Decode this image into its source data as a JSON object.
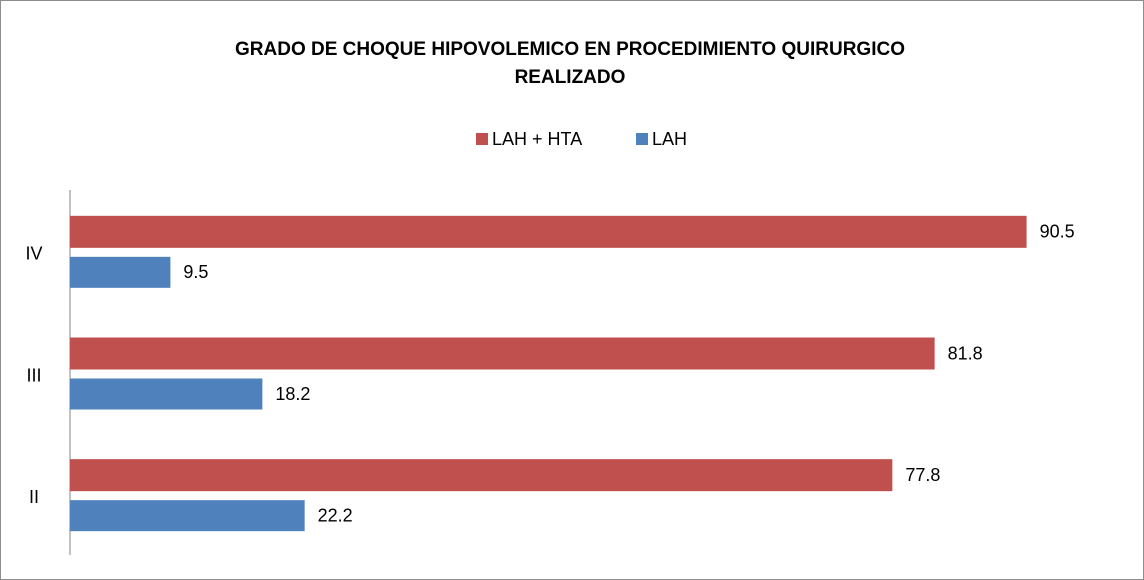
{
  "chart_data": {
    "type": "bar",
    "orientation": "horizontal",
    "title": "GRADO DE CHOQUE HIPOVOLEMICO EN PROCEDIMIENTO QUIRURGICO REALIZADO",
    "categories": [
      "II",
      "III",
      "IV"
    ],
    "series": [
      {
        "name": "LAH + HTA",
        "color": "#c0504d",
        "values": [
          77.8,
          81.8,
          90.5
        ]
      },
      {
        "name": "LAH",
        "color": "#4f81bd",
        "values": [
          22.2,
          18.2,
          9.5
        ]
      }
    ],
    "xlim": [
      0,
      100
    ],
    "legend": "top"
  }
}
